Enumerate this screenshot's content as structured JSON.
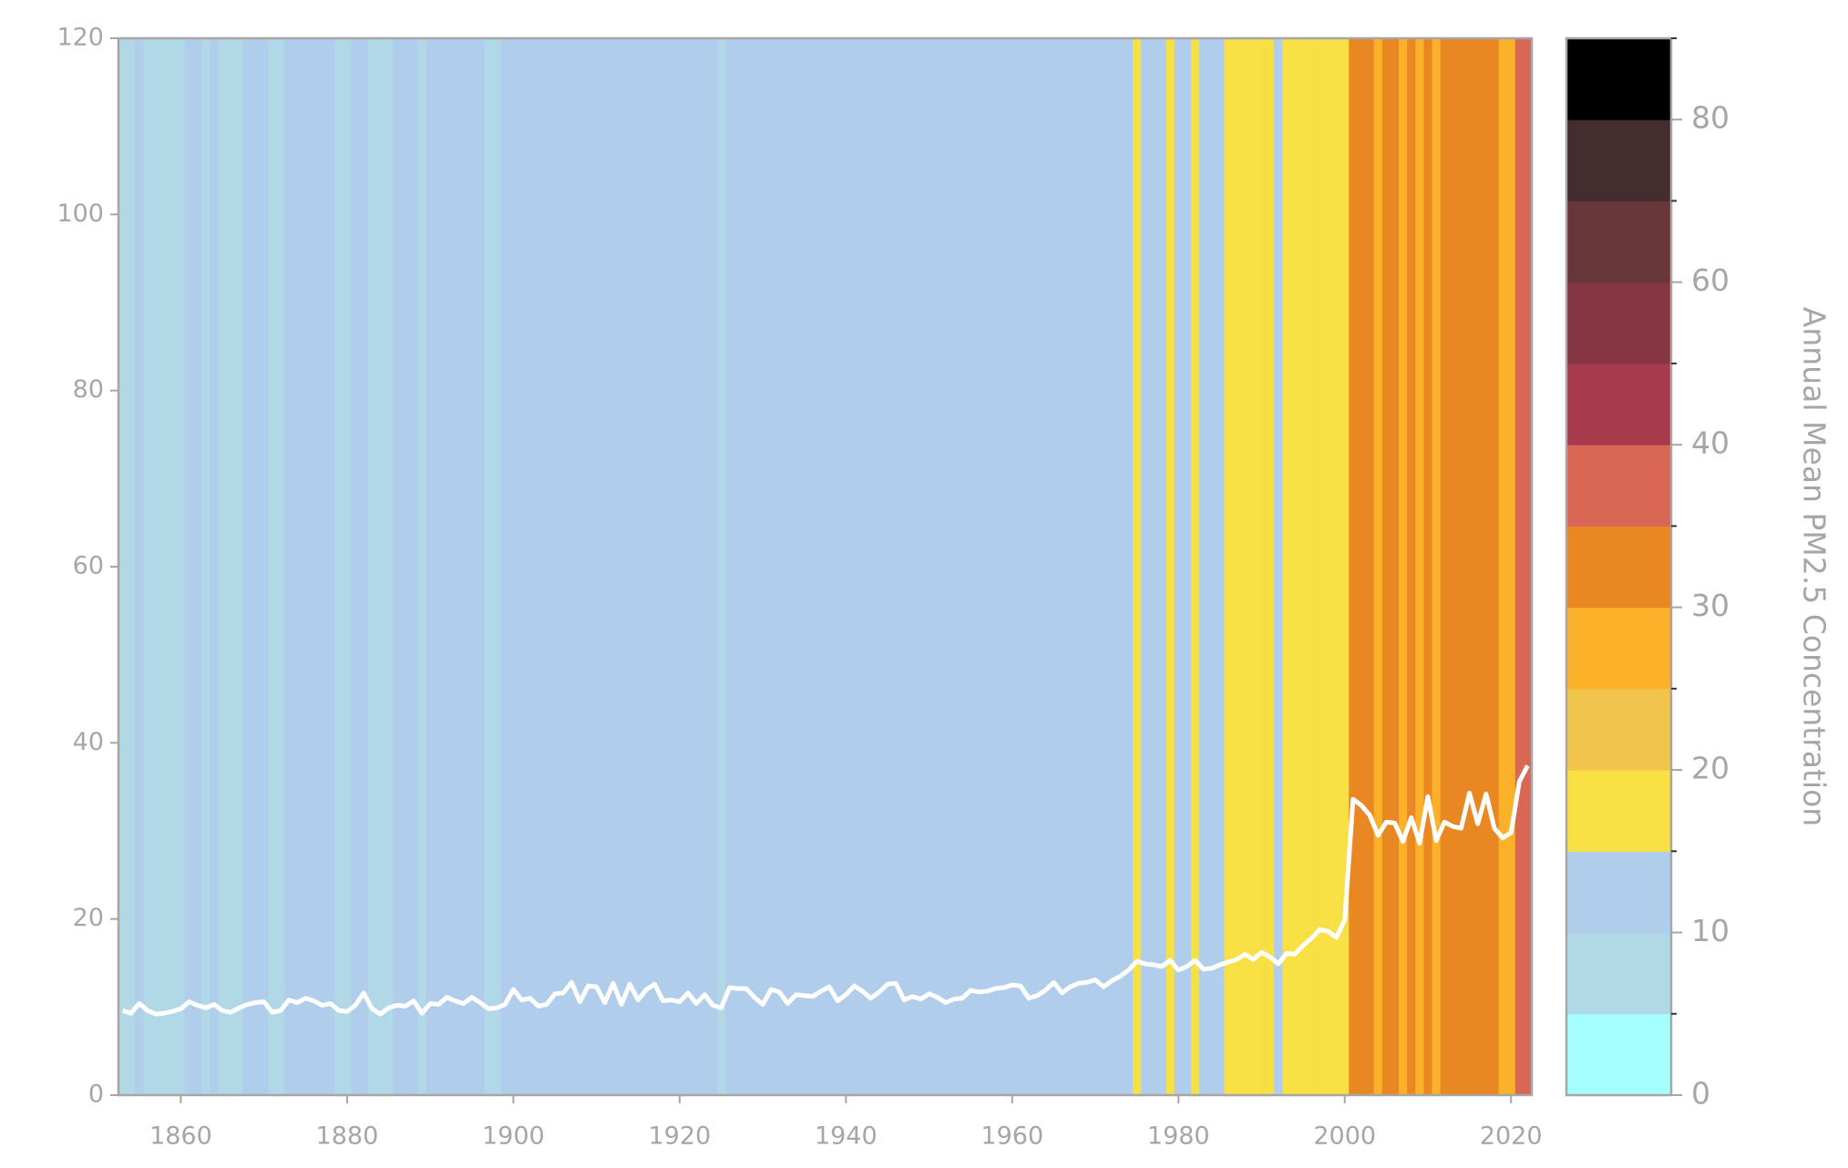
{
  "chart_data": {
    "type": "stripes_line",
    "x": [
      1853,
      1854,
      1855,
      1856,
      1857,
      1858,
      1859,
      1860,
      1861,
      1862,
      1863,
      1864,
      1865,
      1866,
      1867,
      1868,
      1869,
      1870,
      1871,
      1872,
      1873,
      1874,
      1875,
      1876,
      1877,
      1878,
      1879,
      1880,
      1881,
      1882,
      1883,
      1884,
      1885,
      1886,
      1887,
      1888,
      1889,
      1890,
      1891,
      1892,
      1893,
      1894,
      1895,
      1896,
      1897,
      1898,
      1899,
      1900,
      1901,
      1902,
      1903,
      1904,
      1905,
      1906,
      1907,
      1908,
      1909,
      1910,
      1911,
      1912,
      1913,
      1914,
      1915,
      1916,
      1917,
      1918,
      1919,
      1920,
      1921,
      1922,
      1923,
      1924,
      1925,
      1926,
      1927,
      1928,
      1929,
      1930,
      1931,
      1932,
      1933,
      1934,
      1935,
      1936,
      1937,
      1938,
      1939,
      1940,
      1941,
      1942,
      1943,
      1944,
      1945,
      1946,
      1947,
      1948,
      1949,
      1950,
      1951,
      1952,
      1953,
      1954,
      1955,
      1956,
      1957,
      1958,
      1959,
      1960,
      1961,
      1962,
      1963,
      1964,
      1965,
      1966,
      1967,
      1968,
      1969,
      1970,
      1971,
      1972,
      1973,
      1974,
      1975,
      1976,
      1977,
      1978,
      1979,
      1980,
      1981,
      1982,
      1983,
      1984,
      1985,
      1986,
      1987,
      1988,
      1989,
      1990,
      1991,
      1992,
      1993,
      1994,
      1995,
      1996,
      1997,
      1998,
      1999,
      2000,
      2001,
      2002,
      2003,
      2004,
      2005,
      2006,
      2007,
      2008,
      2009,
      2010,
      2011,
      2012,
      2013,
      2014,
      2015,
      2016,
      2017,
      2018,
      2019,
      2020,
      2021,
      2022
    ],
    "series": [
      {
        "color": "#ffffff",
        "values": [
          9.6,
          9.3,
          10.4,
          9.6,
          9.2,
          9.3,
          9.5,
          9.8,
          10.6,
          10.2,
          9.9,
          10.3,
          9.6,
          9.4,
          9.9,
          10.3,
          10.5,
          10.6,
          9.4,
          9.6,
          10.8,
          10.5,
          11.0,
          10.7,
          10.2,
          10.4,
          9.6,
          9.5,
          10.2,
          11.6,
          9.8,
          9.2,
          9.9,
          10.2,
          10.1,
          10.7,
          9.3,
          10.4,
          10.3,
          11.1,
          10.7,
          10.4,
          11.1,
          10.5,
          9.8,
          9.9,
          10.3,
          12.0,
          10.8,
          11.0,
          10.1,
          10.3,
          11.5,
          11.6,
          12.8,
          10.6,
          12.4,
          12.3,
          10.5,
          12.7,
          10.3,
          12.6,
          10.8,
          12.0,
          12.6,
          10.7,
          10.8,
          10.6,
          11.6,
          10.4,
          11.4,
          10.2,
          9.9,
          12.2,
          12.1,
          12.1,
          11.1,
          10.3,
          12.0,
          11.7,
          10.4,
          11.4,
          11.3,
          11.2,
          11.8,
          12.3,
          10.7,
          11.4,
          12.4,
          11.8,
          11.0,
          11.7,
          12.6,
          12.7,
          10.8,
          11.2,
          10.9,
          11.5,
          11.1,
          10.5,
          10.9,
          11.0,
          11.9,
          11.7,
          11.8,
          12.1,
          12.2,
          12.5,
          12.4,
          11.0,
          11.3,
          11.9,
          12.8,
          11.6,
          12.3,
          12.7,
          12.8,
          13.1,
          12.3,
          13.0,
          13.5,
          14.2,
          15.2,
          14.9,
          14.8,
          14.6,
          15.3,
          14.2,
          14.6,
          15.3,
          14.3,
          14.4,
          14.8,
          15.1,
          15.4,
          16.0,
          15.4,
          16.2,
          15.7,
          14.9,
          16.1,
          16.0,
          17.0,
          17.8,
          18.8,
          18.6,
          17.9,
          19.9,
          33.6,
          32.9,
          31.8,
          29.5,
          31.0,
          30.9,
          28.8,
          31.5,
          28.6,
          33.9,
          28.9,
          31.0,
          30.5,
          30.3,
          34.3,
          30.8,
          34.2,
          30.3,
          29.2,
          29.8,
          35.6,
          37.4
        ]
      }
    ],
    "xlim": [
      1852.5,
      2022.5
    ],
    "ylim": [
      0,
      120
    ],
    "xticks": [
      1860,
      1880,
      1900,
      1920,
      1940,
      1960,
      1980,
      2000,
      2020
    ],
    "yticks": [
      0,
      20,
      40,
      60,
      80,
      100,
      120
    ],
    "colorbar": {
      "label": "Annual Mean PM2.5 Concentration",
      "bounds": [
        0,
        5,
        10,
        15,
        20,
        25,
        30,
        35,
        40,
        50,
        60,
        70,
        80,
        90
      ],
      "colors": [
        "#a6ffff",
        "#b0d8e6",
        "#b0cdec",
        "#f7df44",
        "#f1c54c",
        "#fbb22a",
        "#e98823",
        "#d96756",
        "#a83a4e",
        "#843541",
        "#663639",
        "#442b2e",
        "#000000"
      ],
      "ticks": [
        0,
        10,
        20,
        30,
        40,
        60,
        80
      ],
      "minor_ticks": [
        5,
        15,
        25,
        35,
        50,
        70,
        90
      ]
    }
  }
}
